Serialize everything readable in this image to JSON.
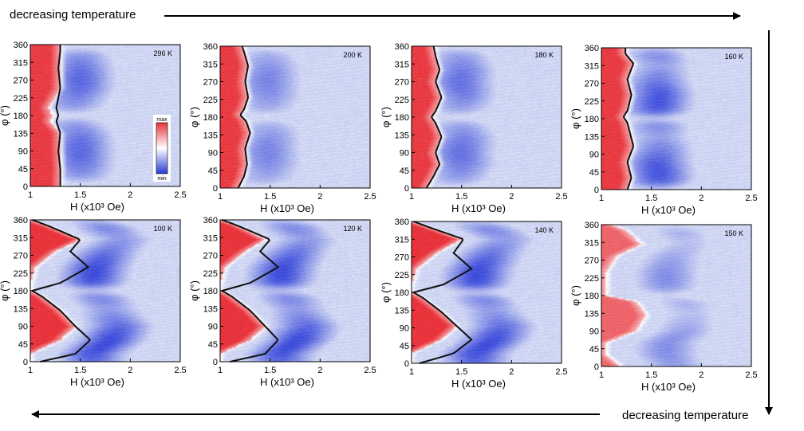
{
  "banners": {
    "top": "decreasing temperature",
    "bottom": "decreasing temperature"
  },
  "colors": {
    "red": "#e8323a",
    "white": "#ffffff",
    "blue": "#2a3ad8",
    "background_blue": "#cfd6f3",
    "contour": "#111111",
    "arrow": "#000000"
  },
  "colorbar": {
    "max_label": "max",
    "min_label": "min"
  },
  "chart_data": [
    {
      "type": "heatmap",
      "title": "296 K",
      "temperature_K": 296,
      "xlabel": "H (x10³ Oe)",
      "ylabel": "φ (°)",
      "xlim": [
        1,
        2.5
      ],
      "ylim": [
        0,
        360
      ],
      "xticks": [
        "1",
        "1.5",
        "2",
        "2.5"
      ],
      "yticks": [
        "0",
        "45",
        "90",
        "135",
        "180",
        "225",
        "270",
        "315",
        "360"
      ],
      "contour": {
        "phi": [
          0,
          45,
          90,
          135,
          165,
          180,
          200,
          250,
          300,
          345,
          360
        ],
        "H": [
          1.3,
          1.3,
          1.28,
          1.3,
          1.26,
          1.28,
          1.26,
          1.3,
          1.28,
          1.3,
          1.3
        ]
      },
      "red_edge_H": [
        1.3,
        1.31,
        1.3,
        1.3,
        1.2,
        1.22,
        1.18,
        1.3,
        1.3,
        1.3,
        1.3
      ],
      "blue_center_H": 1.5,
      "blue_strength": 0.75,
      "red_strength": 0.95,
      "blue_lobes_phi": [
        90,
        270
      ],
      "blue_dips_phi": [
        5,
        180,
        355
      ],
      "show_colorbar": true
    },
    {
      "type": "heatmap",
      "title": "200 K",
      "temperature_K": 200,
      "xlabel": "H (x10³ Oe)",
      "ylabel": "φ (°)",
      "xlim": [
        1,
        2.5
      ],
      "ylim": [
        0,
        360
      ],
      "xticks": [
        "1",
        "1.5",
        "2",
        "2.5"
      ],
      "yticks": [
        "0",
        "45",
        "90",
        "135",
        "180",
        "225",
        "270",
        "315",
        "360"
      ],
      "contour": {
        "phi": [
          0,
          30,
          60,
          100,
          140,
          170,
          185,
          200,
          230,
          270,
          310,
          345,
          360
        ],
        "H": [
          1.18,
          1.24,
          1.27,
          1.25,
          1.3,
          1.26,
          1.2,
          1.24,
          1.28,
          1.25,
          1.28,
          1.24,
          1.22
        ]
      },
      "red_edge_H": [
        1.18,
        1.24,
        1.27,
        1.25,
        1.3,
        1.26,
        1.2,
        1.24,
        1.28,
        1.25,
        1.28,
        1.24,
        1.22
      ],
      "blue_center_H": 1.5,
      "blue_strength": 0.6,
      "red_strength": 0.95,
      "blue_lobes_phi": [
        90,
        270
      ],
      "blue_dips_phi": [
        0,
        180,
        360
      ],
      "show_colorbar": false
    },
    {
      "type": "heatmap",
      "title": "180 K",
      "temperature_K": 180,
      "xlabel": "H (x10³ Oe)",
      "ylabel": "φ (°)",
      "xlim": [
        1,
        2.5
      ],
      "ylim": [
        0,
        360
      ],
      "xticks": [
        "1",
        "1.5",
        "2",
        "2.5"
      ],
      "yticks": [
        "0",
        "45",
        "90",
        "135",
        "180",
        "225",
        "270",
        "315",
        "360"
      ],
      "contour": {
        "phi": [
          0,
          30,
          60,
          90,
          130,
          165,
          180,
          195,
          230,
          270,
          300,
          335,
          360
        ],
        "H": [
          1.15,
          1.22,
          1.28,
          1.24,
          1.3,
          1.24,
          1.2,
          1.24,
          1.3,
          1.24,
          1.28,
          1.24,
          1.22
        ]
      },
      "red_edge_H": [
        1.15,
        1.22,
        1.28,
        1.24,
        1.3,
        1.24,
        1.2,
        1.24,
        1.3,
        1.24,
        1.28,
        1.24,
        1.22
      ],
      "blue_center_H": 1.52,
      "blue_strength": 0.7,
      "red_strength": 0.95,
      "blue_lobes_phi": [
        90,
        270
      ],
      "blue_dips_phi": [
        0,
        180,
        360
      ],
      "show_colorbar": false
    },
    {
      "type": "heatmap",
      "title": "160 K",
      "temperature_K": 160,
      "xlabel": "H (x10³ Oe)",
      "ylabel": "φ (°)",
      "xlim": [
        1,
        2.5
      ],
      "ylim": [
        0,
        360
      ],
      "xticks": [
        "1",
        "1.5",
        "2",
        "2.5"
      ],
      "yticks": [
        "0",
        "45",
        "90",
        "135",
        "180",
        "225",
        "270",
        "315",
        "360"
      ],
      "contour": {
        "phi": [
          0,
          30,
          70,
          110,
          150,
          170,
          185,
          200,
          240,
          280,
          320,
          345,
          360
        ],
        "H": [
          1.26,
          1.3,
          1.26,
          1.32,
          1.28,
          1.26,
          1.22,
          1.26,
          1.3,
          1.26,
          1.32,
          1.24,
          1.24
        ]
      },
      "red_edge_H": [
        1.26,
        1.3,
        1.26,
        1.32,
        1.28,
        1.26,
        1.22,
        1.26,
        1.3,
        1.26,
        1.32,
        1.24,
        1.24
      ],
      "blue_center_H": 1.58,
      "blue_strength": 0.85,
      "red_strength": 0.95,
      "blue_lobes_phi": [
        45,
        225
      ],
      "blue_dips_phi": [
        0,
        180,
        360
      ],
      "show_colorbar": false
    },
    {
      "type": "heatmap",
      "title": "100 K",
      "temperature_K": 100,
      "xlabel": "H (x10³ Oe)",
      "ylabel": "φ (°)",
      "xlim": [
        1,
        2.5
      ],
      "ylim": [
        0,
        360
      ],
      "xticks": [
        "1",
        "1.5",
        "2",
        "2.5"
      ],
      "yticks": [
        "0",
        "45",
        "90",
        "135",
        "180",
        "225",
        "270",
        "315",
        "360"
      ],
      "contour": {
        "phi": [
          0,
          20,
          55,
          90,
          130,
          165,
          180,
          200,
          240,
          280,
          310,
          345,
          360
        ],
        "H": [
          1.1,
          1.45,
          1.6,
          1.45,
          1.3,
          1.12,
          1.02,
          1.3,
          1.58,
          1.4,
          1.5,
          1.18,
          1.02
        ]
      },
      "red_edge_H": [
        1.0,
        1.0,
        1.3,
        1.45,
        1.3,
        1.12,
        1.0,
        1.0,
        1.05,
        1.25,
        1.5,
        1.18,
        1.0
      ],
      "blue_center_H": 1.8,
      "blue_strength": 0.9,
      "red_strength": 1.0,
      "blue_lobes_phi": [
        45,
        225
      ],
      "blue_dips_phi": [
        180,
        360
      ],
      "show_colorbar": false
    },
    {
      "type": "heatmap",
      "title": "120 K",
      "temperature_K": 120,
      "xlabel": "H (x10³ Oe)",
      "ylabel": "φ (°)",
      "xlim": [
        1,
        2.5
      ],
      "ylim": [
        0,
        360
      ],
      "xticks": [
        "1",
        "1.5",
        "2",
        "2.5"
      ],
      "yticks": [
        "0",
        "45",
        "90",
        "135",
        "180",
        "225",
        "270",
        "315",
        "360"
      ],
      "contour": {
        "phi": [
          0,
          20,
          55,
          90,
          130,
          165,
          180,
          200,
          240,
          280,
          310,
          345,
          360
        ],
        "H": [
          1.1,
          1.45,
          1.58,
          1.45,
          1.3,
          1.12,
          1.02,
          1.3,
          1.58,
          1.4,
          1.5,
          1.18,
          1.02
        ]
      },
      "red_edge_H": [
        1.0,
        1.0,
        1.3,
        1.45,
        1.3,
        1.12,
        1.0,
        1.0,
        1.05,
        1.25,
        1.45,
        1.18,
        1.0
      ],
      "blue_center_H": 1.78,
      "blue_strength": 0.9,
      "red_strength": 1.0,
      "blue_lobes_phi": [
        45,
        225
      ],
      "blue_dips_phi": [
        180,
        360
      ],
      "show_colorbar": false
    },
    {
      "type": "heatmap",
      "title": "140 K",
      "temperature_K": 140,
      "xlabel": "H (x10³ Oe)",
      "ylabel": "φ (°)",
      "xlim": [
        1,
        2.5
      ],
      "ylim": [
        0,
        360
      ],
      "xticks": [
        "1",
        "1.5",
        "2",
        "2.5"
      ],
      "yticks": [
        "0",
        "45",
        "90",
        "135",
        "180",
        "225",
        "270",
        "315",
        "360"
      ],
      "contour": {
        "phi": [
          0,
          25,
          60,
          95,
          130,
          165,
          180,
          200,
          240,
          280,
          315,
          345,
          360
        ],
        "H": [
          1.08,
          1.42,
          1.6,
          1.45,
          1.3,
          1.12,
          1.02,
          1.32,
          1.6,
          1.42,
          1.52,
          1.18,
          1.02
        ]
      },
      "red_edge_H": [
        1.0,
        1.0,
        1.3,
        1.45,
        1.3,
        1.12,
        1.0,
        1.0,
        1.05,
        1.25,
        1.5,
        1.18,
        1.0
      ],
      "blue_center_H": 1.82,
      "blue_strength": 0.9,
      "red_strength": 1.0,
      "blue_lobes_phi": [
        45,
        225
      ],
      "blue_dips_phi": [
        180,
        360
      ],
      "show_colorbar": false
    },
    {
      "type": "heatmap",
      "title": "150 K",
      "temperature_K": 150,
      "xlabel": "H (x10³ Oe)",
      "ylabel": "φ (°)",
      "xlim": [
        1,
        2.5
      ],
      "ylim": [
        0,
        360
      ],
      "xticks": [
        "1",
        "1.5",
        "2",
        "2.5"
      ],
      "yticks": [
        "0",
        "45",
        "90",
        "135",
        "180",
        "225",
        "270",
        "315",
        "360"
      ],
      "contour": null,
      "red_edge_H": [
        1.2,
        1.05,
        1.05,
        1.35,
        1.45,
        1.35,
        1.05,
        1.05,
        1.05,
        1.15,
        1.4,
        1.25,
        1.1
      ],
      "blue_center_H": 1.8,
      "blue_strength": 0.55,
      "red_strength": 0.75,
      "blue_lobes_phi": [
        45,
        225
      ],
      "blue_dips_phi": [
        180,
        360
      ],
      "show_colorbar": false
    }
  ]
}
